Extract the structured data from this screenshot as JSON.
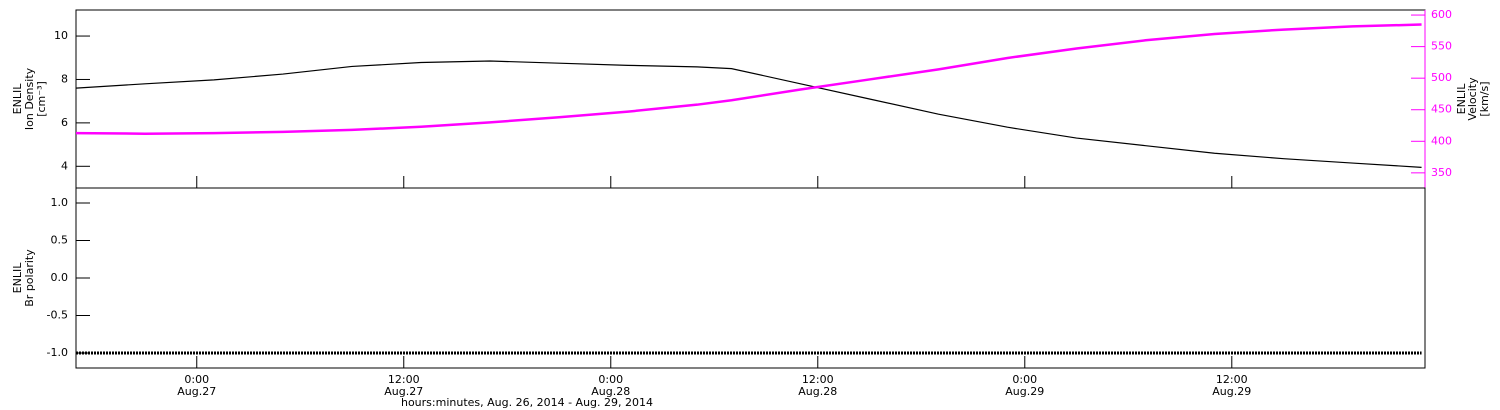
{
  "chart_data": [
    {
      "type": "line",
      "ylabel": [
        "ENLIL",
        "Ion Density",
        "[cm⁻³]"
      ],
      "y2label": [
        "ENLIL",
        "Velocity",
        "[km/s]"
      ],
      "xlim": [
        -7,
        71.2
      ],
      "x": [
        -7,
        -3,
        1,
        5,
        9,
        13,
        17,
        21,
        25,
        29,
        31,
        35,
        39,
        43,
        47,
        51,
        55,
        59,
        63,
        67,
        71
      ],
      "ylim": [
        3,
        11.2
      ],
      "yticks": [
        4,
        6,
        8,
        10
      ],
      "y2lim": [
        326,
        608
      ],
      "y2ticks": [
        350,
        400,
        450,
        500,
        550,
        600
      ],
      "series": [
        {
          "name": "Ion Density",
          "color": "#000000",
          "values": [
            7.6,
            7.8,
            7.98,
            8.25,
            8.6,
            8.78,
            8.85,
            8.75,
            8.65,
            8.58,
            8.5,
            7.8,
            7.1,
            6.4,
            5.8,
            5.3,
            4.95,
            4.6,
            4.35,
            4.15,
            3.95
          ]
        },
        {
          "name": "Velocity",
          "color": "#ff00ff",
          "axis": "y2",
          "values": [
            413,
            412,
            413,
            415,
            418,
            423,
            430,
            438,
            447,
            458,
            465,
            482,
            498,
            514,
            532,
            547,
            560,
            570,
            577,
            582,
            585
          ]
        }
      ]
    },
    {
      "type": "line",
      "ylabel": [
        "ENLIL",
        "Br polarity"
      ],
      "xlabel": "hours:minutes, Aug. 26, 2014 - Aug. 29, 2014",
      "xlim": [
        -7,
        71.2
      ],
      "xticks": [
        {
          "value": 0,
          "label": "0:00\nAug.27"
        },
        {
          "value": 12,
          "label": "12:00\nAug.27"
        },
        {
          "value": 24,
          "label": "0:00\nAug.28"
        },
        {
          "value": 36,
          "label": "12:00\nAug.28"
        },
        {
          "value": 48,
          "label": "0:00\nAug.29"
        },
        {
          "value": 60,
          "label": "12:00\nAug.29"
        }
      ],
      "x": [
        -7,
        -3,
        1,
        5,
        9,
        13,
        17,
        21,
        25,
        29,
        31,
        35,
        39,
        43,
        47,
        51,
        55,
        59,
        63,
        67,
        71
      ],
      "ylim": [
        -1.2,
        1.2
      ],
      "yticks": [
        {
          "value": -1,
          "label": "-1.0"
        },
        {
          "value": -0.5,
          "label": "-0.5"
        },
        {
          "value": 0,
          "label": "0.0"
        },
        {
          "value": 0.5,
          "label": "0.5"
        },
        {
          "value": 1,
          "label": "1.0"
        }
      ],
      "series": [
        {
          "name": "Br polarity",
          "color": "#000000",
          "values": [
            -1,
            -1,
            -1,
            -1,
            -1,
            -1,
            -1,
            -1,
            -1,
            -1,
            -1,
            -1,
            -1,
            -1,
            -1,
            -1,
            -1,
            -1,
            -1,
            -1,
            -1
          ]
        }
      ]
    }
  ]
}
